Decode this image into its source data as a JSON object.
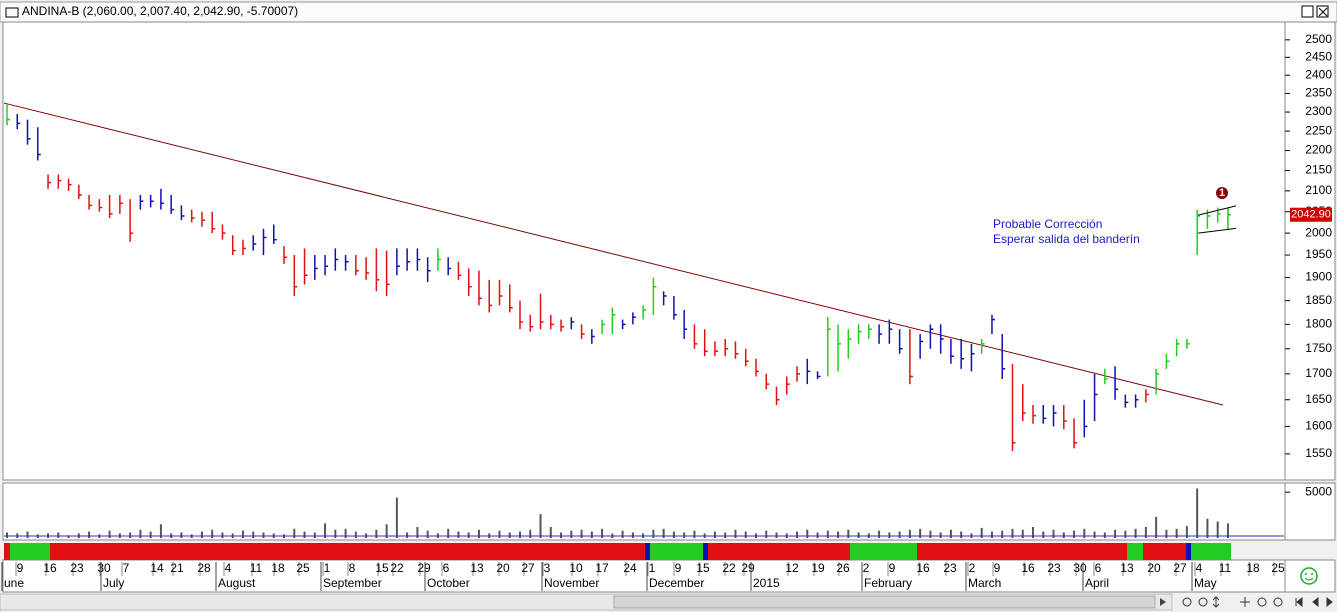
{
  "chart_data": {
    "type": "ohlc",
    "title": "ANDINA-B (2,060.00, 2,007.40, 2,042.90, -5.70007)",
    "log_scale": true,
    "ylim": [
      1504,
      2552
    ],
    "yticks": [
      1550,
      1600,
      1650,
      1700,
      1750,
      1800,
      1850,
      1900,
      1950,
      2000,
      2050,
      2100,
      2150,
      2200,
      2250,
      2300,
      2350,
      2400,
      2450,
      2500
    ],
    "palette": {
      "r": "#e01010",
      "g": "#22cc22",
      "b": "#1010b0"
    },
    "bars": [
      [
        2320,
        2265,
        2280
      ],
      [
        2295,
        2255,
        2270
      ],
      [
        2280,
        2215,
        2230
      ],
      [
        2260,
        2175,
        2190
      ],
      [
        2140,
        2105,
        2120
      ],
      [
        2140,
        2105,
        2125
      ],
      [
        2130,
        2100,
        2115
      ],
      [
        2115,
        2080,
        2090
      ],
      [
        2090,
        2055,
        2065
      ],
      [
        2080,
        2050,
        2060
      ],
      [
        2090,
        2035,
        2045
      ],
      [
        2090,
        2045,
        2070
      ],
      [
        2080,
        1980,
        2000
      ],
      [
        2090,
        2055,
        2075
      ],
      [
        2090,
        2060,
        2075
      ],
      [
        2105,
        2055,
        2070
      ],
      [
        2090,
        2045,
        2055
      ],
      [
        2065,
        2030,
        2040
      ],
      [
        2055,
        2025,
        2035
      ],
      [
        2050,
        2015,
        2030
      ],
      [
        2050,
        2000,
        2010
      ],
      [
        2020,
        1985,
        2000
      ],
      [
        1995,
        1950,
        1960
      ],
      [
        1985,
        1950,
        1965
      ],
      [
        1995,
        1960,
        1975
      ],
      [
        2010,
        1950,
        1990
      ],
      [
        2020,
        1975,
        1985
      ],
      [
        1970,
        1930,
        1945
      ],
      [
        1950,
        1860,
        1880
      ],
      [
        1965,
        1885,
        1905
      ],
      [
        1950,
        1895,
        1920
      ],
      [
        1950,
        1905,
        1925
      ],
      [
        1965,
        1915,
        1940
      ],
      [
        1950,
        1915,
        1935
      ],
      [
        1950,
        1905,
        1915
      ],
      [
        1945,
        1895,
        1910
      ],
      [
        1965,
        1870,
        1895
      ],
      [
        1960,
        1860,
        1885
      ],
      [
        1965,
        1905,
        1925
      ],
      [
        1965,
        1915,
        1935
      ],
      [
        1965,
        1915,
        1940
      ],
      [
        1945,
        1890,
        1915
      ],
      [
        1965,
        1915,
        1940
      ],
      [
        1945,
        1905,
        1920
      ],
      [
        1935,
        1895,
        1905
      ],
      [
        1920,
        1860,
        1880
      ],
      [
        1915,
        1840,
        1855
      ],
      [
        1895,
        1825,
        1840
      ],
      [
        1895,
        1840,
        1860
      ],
      [
        1885,
        1825,
        1835
      ],
      [
        1850,
        1790,
        1805
      ],
      [
        1820,
        1785,
        1795
      ],
      [
        1865,
        1790,
        1805
      ],
      [
        1820,
        1790,
        1800
      ],
      [
        1810,
        1785,
        1795
      ],
      [
        1815,
        1790,
        1805
      ],
      [
        1800,
        1770,
        1780
      ],
      [
        1790,
        1760,
        1775
      ],
      [
        1810,
        1780,
        1800
      ],
      [
        1835,
        1780,
        1820
      ],
      [
        1810,
        1790,
        1800
      ],
      [
        1825,
        1800,
        1815
      ],
      [
        1840,
        1810,
        1830
      ],
      [
        1900,
        1820,
        1880
      ],
      [
        1870,
        1840,
        1860
      ],
      [
        1860,
        1810,
        1820
      ],
      [
        1830,
        1770,
        1790
      ],
      [
        1800,
        1750,
        1760
      ],
      [
        1790,
        1735,
        1745
      ],
      [
        1765,
        1735,
        1745
      ],
      [
        1770,
        1735,
        1750
      ],
      [
        1765,
        1730,
        1740
      ],
      [
        1750,
        1715,
        1725
      ],
      [
        1730,
        1695,
        1705
      ],
      [
        1700,
        1670,
        1680
      ],
      [
        1675,
        1640,
        1650
      ],
      [
        1695,
        1660,
        1680
      ],
      [
        1715,
        1685,
        1700
      ],
      [
        1730,
        1680,
        1705
      ],
      [
        1705,
        1690,
        1695
      ],
      [
        1815,
        1695,
        1790
      ],
      [
        1800,
        1705,
        1760
      ],
      [
        1790,
        1730,
        1770
      ],
      [
        1800,
        1760,
        1785
      ],
      [
        1800,
        1770,
        1790
      ],
      [
        1800,
        1760,
        1780
      ],
      [
        1810,
        1760,
        1790
      ],
      [
        1790,
        1740,
        1750
      ],
      [
        1790,
        1680,
        1695
      ],
      [
        1780,
        1730,
        1765
      ],
      [
        1800,
        1750,
        1790
      ],
      [
        1800,
        1740,
        1770
      ],
      [
        1770,
        1720,
        1735
      ],
      [
        1770,
        1710,
        1730
      ],
      [
        1760,
        1705,
        1740
      ],
      [
        1770,
        1740,
        1760
      ],
      [
        1820,
        1780,
        1810
      ],
      [
        1780,
        1690,
        1710
      ],
      [
        1720,
        1555,
        1570
      ],
      [
        1680,
        1610,
        1625
      ],
      [
        1640,
        1605,
        1620
      ],
      [
        1640,
        1605,
        1615
      ],
      [
        1640,
        1600,
        1625
      ],
      [
        1640,
        1595,
        1610
      ],
      [
        1615,
        1560,
        1570
      ],
      [
        1650,
        1580,
        1600
      ],
      [
        1700,
        1610,
        1660
      ],
      [
        1710,
        1680,
        1690
      ],
      [
        1715,
        1650,
        1670
      ],
      [
        1660,
        1635,
        1645
      ],
      [
        1660,
        1635,
        1650
      ],
      [
        1670,
        1645,
        1660
      ],
      [
        1710,
        1660,
        1700
      ],
      [
        1740,
        1710,
        1725
      ],
      [
        1770,
        1735,
        1760
      ],
      [
        1770,
        1750,
        1760
      ],
      [
        2055,
        1950,
        2040
      ],
      [
        2055,
        2010,
        2040
      ],
      [
        2060,
        2025,
        2045
      ],
      [
        2060,
        2007.4,
        2042.9
      ]
    ],
    "bar_colors": [
      "g",
      "b",
      "b",
      "b",
      "r",
      "r",
      "r",
      "r",
      "r",
      "r",
      "r",
      "r",
      "r",
      "b",
      "b",
      "b",
      "b",
      "b",
      "r",
      "r",
      "r",
      "r",
      "r",
      "r",
      "b",
      "b",
      "b",
      "r",
      "r",
      "r",
      "b",
      "b",
      "b",
      "b",
      "r",
      "r",
      "r",
      "r",
      "b",
      "b",
      "b",
      "b",
      "g",
      "b",
      "r",
      "r",
      "r",
      "r",
      "r",
      "r",
      "r",
      "r",
      "r",
      "r",
      "r",
      "b",
      "r",
      "b",
      "g",
      "g",
      "b",
      "b",
      "g",
      "g",
      "b",
      "b",
      "b",
      "r",
      "r",
      "r",
      "r",
      "r",
      "r",
      "r",
      "r",
      "r",
      "r",
      "r",
      "b",
      "b",
      "g",
      "g",
      "g",
      "g",
      "g",
      "b",
      "b",
      "b",
      "r",
      "b",
      "b",
      "b",
      "b",
      "b",
      "b",
      "g",
      "b",
      "b",
      "r",
      "r",
      "r",
      "b",
      "b",
      "r",
      "r",
      "b",
      "b",
      "g",
      "b",
      "b",
      "b",
      "r",
      "g",
      "g",
      "g",
      "g",
      "g",
      "g",
      "g",
      "g"
    ],
    "trendline": {
      "color": "#800000",
      "values": [
        2324,
        1640
      ]
    },
    "flag_upper": [
      2042,
      2064
    ],
    "flag_lower": [
      2000,
      2011
    ],
    "last": {
      "value": 2042.9,
      "label": "2042.90"
    },
    "annotations": [
      "Probable Corrección",
      "Esperar salida del banderín"
    ],
    "marker": "1",
    "volume": {
      "ylim": [
        0,
        6000
      ],
      "yticks": [
        5000
      ],
      "values": [
        600,
        500,
        700,
        400,
        500,
        600,
        300,
        500,
        700,
        400,
        800,
        500,
        600,
        900,
        700,
        1500,
        500,
        600,
        400,
        700,
        900,
        600,
        500,
        800,
        700,
        600,
        500,
        400,
        1000,
        700,
        600,
        1600,
        900,
        1000,
        700,
        500,
        900,
        1500,
        4400,
        600,
        1200,
        800,
        500,
        1000,
        700,
        600,
        900,
        500,
        800,
        600,
        700,
        900,
        2600,
        1200,
        600,
        800,
        900,
        700,
        1000,
        500,
        800,
        600,
        500,
        900,
        1000,
        700,
        600,
        800,
        500,
        700,
        600,
        900,
        700,
        500,
        800,
        600,
        500,
        700,
        900,
        600,
        800,
        700,
        900,
        600,
        500,
        800,
        600,
        700,
        900,
        1000,
        800,
        600,
        900,
        700,
        500,
        1100,
        700,
        800,
        1000,
        900,
        1200,
        700,
        900,
        600,
        800,
        1000,
        700,
        600,
        900,
        800,
        1000,
        1200,
        2300,
        900,
        1000,
        1300,
        5400,
        2100,
        1800,
        1600
      ]
    },
    "x_days": [
      "9",
      "16",
      "23",
      "30",
      "7",
      "14",
      "21",
      "28",
      "4",
      "11",
      "18",
      "25",
      "1",
      "8",
      "15",
      "22",
      "29",
      "6",
      "13",
      "20",
      "27",
      "3",
      "10",
      "17",
      "24",
      "1",
      "9",
      "15",
      "22",
      "29",
      "12",
      "19",
      "26",
      "2",
      "9",
      "16",
      "23",
      "2",
      "9",
      "16",
      "23",
      "30",
      "6",
      "13",
      "20",
      "27",
      "4",
      "11",
      "18",
      "25"
    ],
    "x_months": [
      "une",
      "July",
      "August",
      "September",
      "October",
      "November",
      "December",
      "2015",
      "February",
      "March",
      "April",
      "May"
    ]
  }
}
